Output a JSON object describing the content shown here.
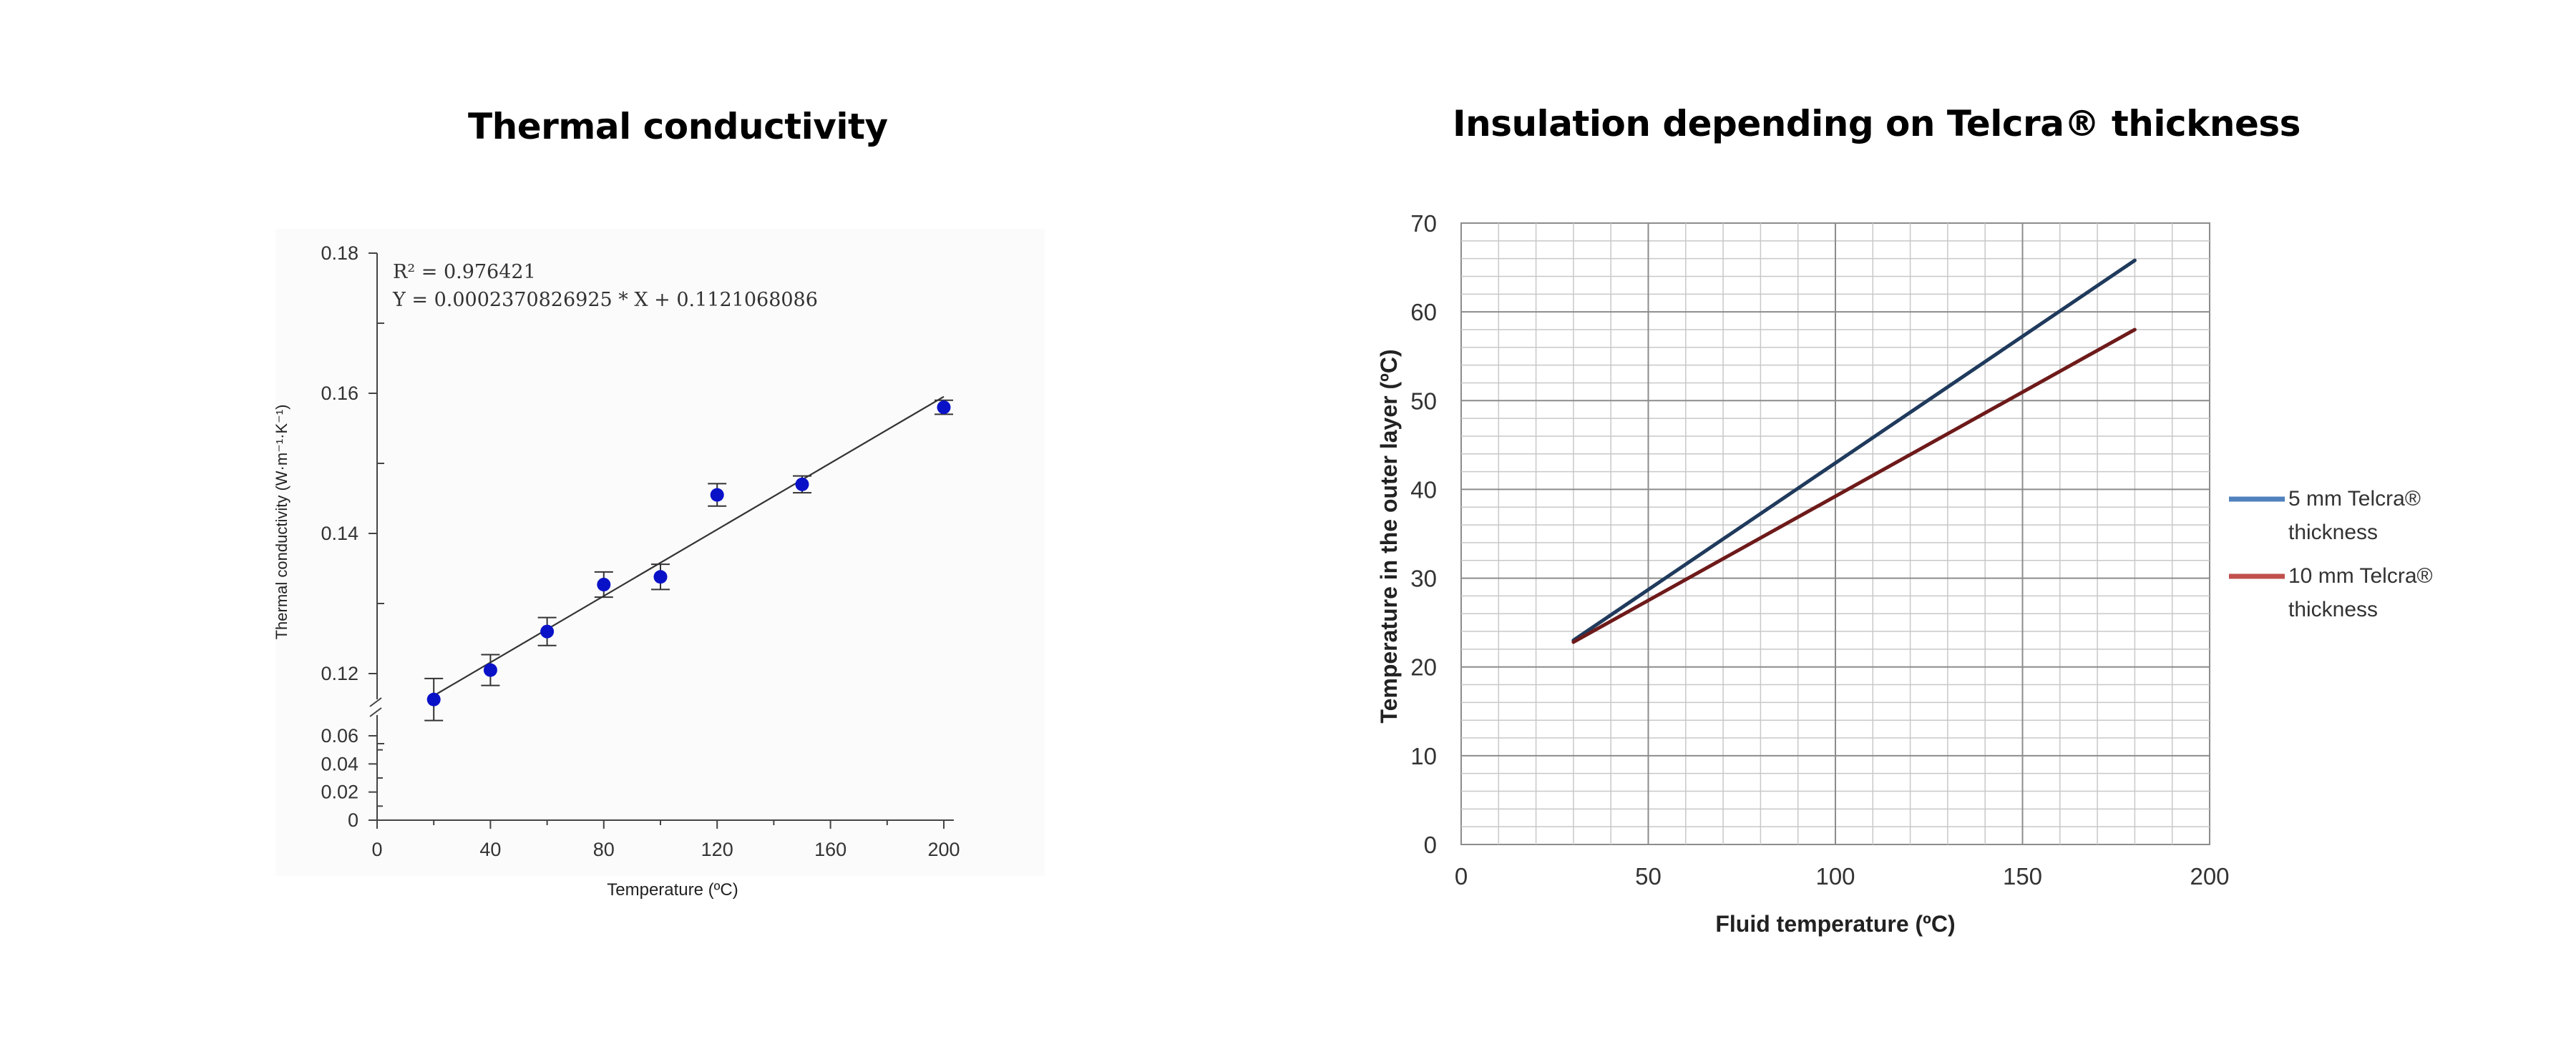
{
  "chart_data": [
    {
      "type": "scatter",
      "title": "Thermal conductivity",
      "xlabel": "Temperature (ºC)",
      "ylabel": "Thermal conductivity (W·m⁻¹·K⁻¹)",
      "xlim": [
        0,
        200
      ],
      "ylim": [
        0,
        0.18
      ],
      "axis_break": "between 0.06 and 0.11",
      "x_ticks": [
        "0",
        "40",
        "80",
        "120",
        "160",
        "200"
      ],
      "y_ticks_upper": [
        "0.12",
        "0.14",
        "0.16",
        "0.18"
      ],
      "y_ticks_lower": [
        "0",
        "0.02",
        "0.04",
        "0.06"
      ],
      "grid": false,
      "annotations": [
        "R² = 0.976421",
        "Y = 0.0002370826925 * X + 0.1121068086"
      ],
      "points": [
        {
          "x": 20,
          "y": 0.1163,
          "err": 0.003
        },
        {
          "x": 40,
          "y": 0.1205,
          "err": 0.0022
        },
        {
          "x": 60,
          "y": 0.126,
          "err": 0.002
        },
        {
          "x": 80,
          "y": 0.1327,
          "err": 0.0018
        },
        {
          "x": 100,
          "y": 0.1338,
          "err": 0.0018
        },
        {
          "x": 120,
          "y": 0.1455,
          "err": 0.0016
        },
        {
          "x": 150,
          "y": 0.147,
          "err": 0.0012
        },
        {
          "x": 200,
          "y": 0.158,
          "err": 0.001
        }
      ],
      "fit": {
        "slope": 0.0002370826925,
        "intercept": 0.1121068086,
        "x_range": [
          20,
          200
        ]
      },
      "colors": {
        "points": "#0a12c8",
        "fit": "#333333",
        "axis": "#444444"
      }
    },
    {
      "type": "line",
      "title": "Insulation depending on Telcra® thickness",
      "xlabel": "Fluid temperature (ºC)",
      "ylabel": "Temperature in the outer layer (ºC)",
      "xlim": [
        0,
        200
      ],
      "ylim": [
        0,
        70
      ],
      "x_ticks": [
        "0",
        "50",
        "100",
        "150",
        "200"
      ],
      "y_ticks": [
        "0",
        "10",
        "20",
        "30",
        "40",
        "50",
        "60",
        "70"
      ],
      "grid": true,
      "legend_position": "right",
      "series": [
        {
          "name": "5 mm Telcra® thickness",
          "legend_lines": [
            "5 mm Telcra®",
            "thickness"
          ],
          "x": [
            30,
            180
          ],
          "y": [
            23,
            65.8
          ],
          "color": "#1f3a5c",
          "legend_color": "#4f81bd"
        },
        {
          "name": "10 mm Telcra® thickness",
          "legend_lines": [
            "10 mm Telcra®",
            "thickness"
          ],
          "x": [
            30,
            180
          ],
          "y": [
            22.8,
            58
          ],
          "color": "#6e1a1a",
          "legend_color": "#c0504d"
        }
      ]
    }
  ]
}
